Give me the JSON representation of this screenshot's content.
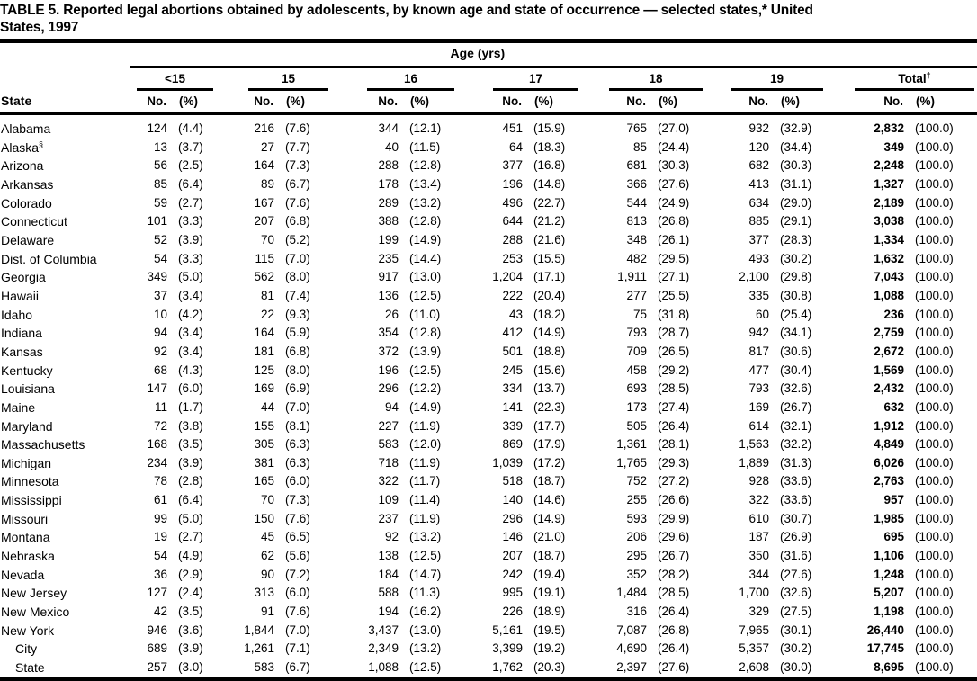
{
  "title": {
    "line1": "TABLE 5. Reported legal abortions obtained by adolescents, by known age and state of occurrence — selected states,* United",
    "line2": "States, 1997"
  },
  "header": {
    "state_label": "State",
    "age_span_label": "Age (yrs)",
    "no_label": "No.",
    "pct_label": "(%)",
    "groups": [
      {
        "label": "<15",
        "sup": ""
      },
      {
        "label": "15",
        "sup": ""
      },
      {
        "label": "16",
        "sup": ""
      },
      {
        "label": "17",
        "sup": ""
      },
      {
        "label": "18",
        "sup": ""
      },
      {
        "label": "19",
        "sup": ""
      },
      {
        "label": "Total",
        "sup": "†"
      }
    ]
  },
  "table": {
    "rows": [
      {
        "state": "Alabama",
        "sup": "",
        "indent": false,
        "cells": [
          [
            "124",
            "(4.4)"
          ],
          [
            "216",
            "(7.6)"
          ],
          [
            "344",
            "(12.1)"
          ],
          [
            "451",
            "(15.9)"
          ],
          [
            "765",
            "(27.0)"
          ],
          [
            "932",
            "(32.9)"
          ],
          [
            "2,832",
            "(100.0)"
          ]
        ]
      },
      {
        "state": "Alaska",
        "sup": "§",
        "indent": false,
        "cells": [
          [
            "13",
            "(3.7)"
          ],
          [
            "27",
            "(7.7)"
          ],
          [
            "40",
            "(11.5)"
          ],
          [
            "64",
            "(18.3)"
          ],
          [
            "85",
            "(24.4)"
          ],
          [
            "120",
            "(34.4)"
          ],
          [
            "349",
            "(100.0)"
          ]
        ]
      },
      {
        "state": "Arizona",
        "sup": "",
        "indent": false,
        "cells": [
          [
            "56",
            "(2.5)"
          ],
          [
            "164",
            "(7.3)"
          ],
          [
            "288",
            "(12.8)"
          ],
          [
            "377",
            "(16.8)"
          ],
          [
            "681",
            "(30.3)"
          ],
          [
            "682",
            "(30.3)"
          ],
          [
            "2,248",
            "(100.0)"
          ]
        ]
      },
      {
        "state": "Arkansas",
        "sup": "",
        "indent": false,
        "cells": [
          [
            "85",
            "(6.4)"
          ],
          [
            "89",
            "(6.7)"
          ],
          [
            "178",
            "(13.4)"
          ],
          [
            "196",
            "(14.8)"
          ],
          [
            "366",
            "(27.6)"
          ],
          [
            "413",
            "(31.1)"
          ],
          [
            "1,327",
            "(100.0)"
          ]
        ]
      },
      {
        "state": "Colorado",
        "sup": "",
        "indent": false,
        "cells": [
          [
            "59",
            "(2.7)"
          ],
          [
            "167",
            "(7.6)"
          ],
          [
            "289",
            "(13.2)"
          ],
          [
            "496",
            "(22.7)"
          ],
          [
            "544",
            "(24.9)"
          ],
          [
            "634",
            "(29.0)"
          ],
          [
            "2,189",
            "(100.0)"
          ]
        ]
      },
      {
        "state": "Connecticut",
        "sup": "",
        "indent": false,
        "cells": [
          [
            "101",
            "(3.3)"
          ],
          [
            "207",
            "(6.8)"
          ],
          [
            "388",
            "(12.8)"
          ],
          [
            "644",
            "(21.2)"
          ],
          [
            "813",
            "(26.8)"
          ],
          [
            "885",
            "(29.1)"
          ],
          [
            "3,038",
            "(100.0)"
          ]
        ]
      },
      {
        "state": "Delaware",
        "sup": "",
        "indent": false,
        "cells": [
          [
            "52",
            "(3.9)"
          ],
          [
            "70",
            "(5.2)"
          ],
          [
            "199",
            "(14.9)"
          ],
          [
            "288",
            "(21.6)"
          ],
          [
            "348",
            "(26.1)"
          ],
          [
            "377",
            "(28.3)"
          ],
          [
            "1,334",
            "(100.0)"
          ]
        ]
      },
      {
        "state": "Dist. of Columbia",
        "sup": "",
        "indent": false,
        "cells": [
          [
            "54",
            "(3.3)"
          ],
          [
            "115",
            "(7.0)"
          ],
          [
            "235",
            "(14.4)"
          ],
          [
            "253",
            "(15.5)"
          ],
          [
            "482",
            "(29.5)"
          ],
          [
            "493",
            "(30.2)"
          ],
          [
            "1,632",
            "(100.0)"
          ]
        ]
      },
      {
        "state": "Georgia",
        "sup": "",
        "indent": false,
        "cells": [
          [
            "349",
            "(5.0)"
          ],
          [
            "562",
            "(8.0)"
          ],
          [
            "917",
            "(13.0)"
          ],
          [
            "1,204",
            "(17.1)"
          ],
          [
            "1,911",
            "(27.1)"
          ],
          [
            "2,100",
            "(29.8)"
          ],
          [
            "7,043",
            "(100.0)"
          ]
        ]
      },
      {
        "state": "Hawaii",
        "sup": "",
        "indent": false,
        "cells": [
          [
            "37",
            "(3.4)"
          ],
          [
            "81",
            "(7.4)"
          ],
          [
            "136",
            "(12.5)"
          ],
          [
            "222",
            "(20.4)"
          ],
          [
            "277",
            "(25.5)"
          ],
          [
            "335",
            "(30.8)"
          ],
          [
            "1,088",
            "(100.0)"
          ]
        ]
      },
      {
        "state": "Idaho",
        "sup": "",
        "indent": false,
        "cells": [
          [
            "10",
            "(4.2)"
          ],
          [
            "22",
            "(9.3)"
          ],
          [
            "26",
            "(11.0)"
          ],
          [
            "43",
            "(18.2)"
          ],
          [
            "75",
            "(31.8)"
          ],
          [
            "60",
            "(25.4)"
          ],
          [
            "236",
            "(100.0)"
          ]
        ]
      },
      {
        "state": "Indiana",
        "sup": "",
        "indent": false,
        "cells": [
          [
            "94",
            "(3.4)"
          ],
          [
            "164",
            "(5.9)"
          ],
          [
            "354",
            "(12.8)"
          ],
          [
            "412",
            "(14.9)"
          ],
          [
            "793",
            "(28.7)"
          ],
          [
            "942",
            "(34.1)"
          ],
          [
            "2,759",
            "(100.0)"
          ]
        ]
      },
      {
        "state": "Kansas",
        "sup": "",
        "indent": false,
        "cells": [
          [
            "92",
            "(3.4)"
          ],
          [
            "181",
            "(6.8)"
          ],
          [
            "372",
            "(13.9)"
          ],
          [
            "501",
            "(18.8)"
          ],
          [
            "709",
            "(26.5)"
          ],
          [
            "817",
            "(30.6)"
          ],
          [
            "2,672",
            "(100.0)"
          ]
        ]
      },
      {
        "state": "Kentucky",
        "sup": "",
        "indent": false,
        "cells": [
          [
            "68",
            "(4.3)"
          ],
          [
            "125",
            "(8.0)"
          ],
          [
            "196",
            "(12.5)"
          ],
          [
            "245",
            "(15.6)"
          ],
          [
            "458",
            "(29.2)"
          ],
          [
            "477",
            "(30.4)"
          ],
          [
            "1,569",
            "(100.0)"
          ]
        ]
      },
      {
        "state": "Louisiana",
        "sup": "",
        "indent": false,
        "cells": [
          [
            "147",
            "(6.0)"
          ],
          [
            "169",
            "(6.9)"
          ],
          [
            "296",
            "(12.2)"
          ],
          [
            "334",
            "(13.7)"
          ],
          [
            "693",
            "(28.5)"
          ],
          [
            "793",
            "(32.6)"
          ],
          [
            "2,432",
            "(100.0)"
          ]
        ]
      },
      {
        "state": "Maine",
        "sup": "",
        "indent": false,
        "cells": [
          [
            "11",
            "(1.7)"
          ],
          [
            "44",
            "(7.0)"
          ],
          [
            "94",
            "(14.9)"
          ],
          [
            "141",
            "(22.3)"
          ],
          [
            "173",
            "(27.4)"
          ],
          [
            "169",
            "(26.7)"
          ],
          [
            "632",
            "(100.0)"
          ]
        ]
      },
      {
        "state": "Maryland",
        "sup": "",
        "indent": false,
        "cells": [
          [
            "72",
            "(3.8)"
          ],
          [
            "155",
            "(8.1)"
          ],
          [
            "227",
            "(11.9)"
          ],
          [
            "339",
            "(17.7)"
          ],
          [
            "505",
            "(26.4)"
          ],
          [
            "614",
            "(32.1)"
          ],
          [
            "1,912",
            "(100.0)"
          ]
        ]
      },
      {
        "state": "Massachusetts",
        "sup": "",
        "indent": false,
        "cells": [
          [
            "168",
            "(3.5)"
          ],
          [
            "305",
            "(6.3)"
          ],
          [
            "583",
            "(12.0)"
          ],
          [
            "869",
            "(17.9)"
          ],
          [
            "1,361",
            "(28.1)"
          ],
          [
            "1,563",
            "(32.2)"
          ],
          [
            "4,849",
            "(100.0)"
          ]
        ]
      },
      {
        "state": "Michigan",
        "sup": "",
        "indent": false,
        "cells": [
          [
            "234",
            "(3.9)"
          ],
          [
            "381",
            "(6.3)"
          ],
          [
            "718",
            "(11.9)"
          ],
          [
            "1,039",
            "(17.2)"
          ],
          [
            "1,765",
            "(29.3)"
          ],
          [
            "1,889",
            "(31.3)"
          ],
          [
            "6,026",
            "(100.0)"
          ]
        ]
      },
      {
        "state": "Minnesota",
        "sup": "",
        "indent": false,
        "cells": [
          [
            "78",
            "(2.8)"
          ],
          [
            "165",
            "(6.0)"
          ],
          [
            "322",
            "(11.7)"
          ],
          [
            "518",
            "(18.7)"
          ],
          [
            "752",
            "(27.2)"
          ],
          [
            "928",
            "(33.6)"
          ],
          [
            "2,763",
            "(100.0)"
          ]
        ]
      },
      {
        "state": "Mississippi",
        "sup": "",
        "indent": false,
        "cells": [
          [
            "61",
            "(6.4)"
          ],
          [
            "70",
            "(7.3)"
          ],
          [
            "109",
            "(11.4)"
          ],
          [
            "140",
            "(14.6)"
          ],
          [
            "255",
            "(26.6)"
          ],
          [
            "322",
            "(33.6)"
          ],
          [
            "957",
            "(100.0)"
          ]
        ]
      },
      {
        "state": "Missouri",
        "sup": "",
        "indent": false,
        "cells": [
          [
            "99",
            "(5.0)"
          ],
          [
            "150",
            "(7.6)"
          ],
          [
            "237",
            "(11.9)"
          ],
          [
            "296",
            "(14.9)"
          ],
          [
            "593",
            "(29.9)"
          ],
          [
            "610",
            "(30.7)"
          ],
          [
            "1,985",
            "(100.0)"
          ]
        ]
      },
      {
        "state": "Montana",
        "sup": "",
        "indent": false,
        "cells": [
          [
            "19",
            "(2.7)"
          ],
          [
            "45",
            "(6.5)"
          ],
          [
            "92",
            "(13.2)"
          ],
          [
            "146",
            "(21.0)"
          ],
          [
            "206",
            "(29.6)"
          ],
          [
            "187",
            "(26.9)"
          ],
          [
            "695",
            "(100.0)"
          ]
        ]
      },
      {
        "state": "Nebraska",
        "sup": "",
        "indent": false,
        "cells": [
          [
            "54",
            "(4.9)"
          ],
          [
            "62",
            "(5.6)"
          ],
          [
            "138",
            "(12.5)"
          ],
          [
            "207",
            "(18.7)"
          ],
          [
            "295",
            "(26.7)"
          ],
          [
            "350",
            "(31.6)"
          ],
          [
            "1,106",
            "(100.0)"
          ]
        ]
      },
      {
        "state": "Nevada",
        "sup": "",
        "indent": false,
        "cells": [
          [
            "36",
            "(2.9)"
          ],
          [
            "90",
            "(7.2)"
          ],
          [
            "184",
            "(14.7)"
          ],
          [
            "242",
            "(19.4)"
          ],
          [
            "352",
            "(28.2)"
          ],
          [
            "344",
            "(27.6)"
          ],
          [
            "1,248",
            "(100.0)"
          ]
        ]
      },
      {
        "state": "New Jersey",
        "sup": "",
        "indent": false,
        "cells": [
          [
            "127",
            "(2.4)"
          ],
          [
            "313",
            "(6.0)"
          ],
          [
            "588",
            "(11.3)"
          ],
          [
            "995",
            "(19.1)"
          ],
          [
            "1,484",
            "(28.5)"
          ],
          [
            "1,700",
            "(32.6)"
          ],
          [
            "5,207",
            "(100.0)"
          ]
        ]
      },
      {
        "state": "New Mexico",
        "sup": "",
        "indent": false,
        "cells": [
          [
            "42",
            "(3.5)"
          ],
          [
            "91",
            "(7.6)"
          ],
          [
            "194",
            "(16.2)"
          ],
          [
            "226",
            "(18.9)"
          ],
          [
            "316",
            "(26.4)"
          ],
          [
            "329",
            "(27.5)"
          ],
          [
            "1,198",
            "(100.0)"
          ]
        ]
      },
      {
        "state": "New York",
        "sup": "",
        "indent": false,
        "cells": [
          [
            "946",
            "(3.6)"
          ],
          [
            "1,844",
            "(7.0)"
          ],
          [
            "3,437",
            "(13.0)"
          ],
          [
            "5,161",
            "(19.5)"
          ],
          [
            "7,087",
            "(26.8)"
          ],
          [
            "7,965",
            "(30.1)"
          ],
          [
            "26,440",
            "(100.0)"
          ]
        ]
      },
      {
        "state": "City",
        "sup": "",
        "indent": true,
        "cells": [
          [
            "689",
            "(3.9)"
          ],
          [
            "1,261",
            "(7.1)"
          ],
          [
            "2,349",
            "(13.2)"
          ],
          [
            "3,399",
            "(19.2)"
          ],
          [
            "4,690",
            "(26.4)"
          ],
          [
            "5,357",
            "(30.2)"
          ],
          [
            "17,745",
            "(100.0)"
          ]
        ]
      },
      {
        "state": "State",
        "sup": "",
        "indent": true,
        "cells": [
          [
            "257",
            "(3.0)"
          ],
          [
            "583",
            "(6.7)"
          ],
          [
            "1,088",
            "(12.5)"
          ],
          [
            "1,762",
            "(20.3)"
          ],
          [
            "2,397",
            "(27.6)"
          ],
          [
            "2,608",
            "(30.0)"
          ],
          [
            "8,695",
            "(100.0)"
          ]
        ]
      }
    ]
  },
  "colors": {
    "ink": "#000000",
    "paper": "#ffffff"
  }
}
